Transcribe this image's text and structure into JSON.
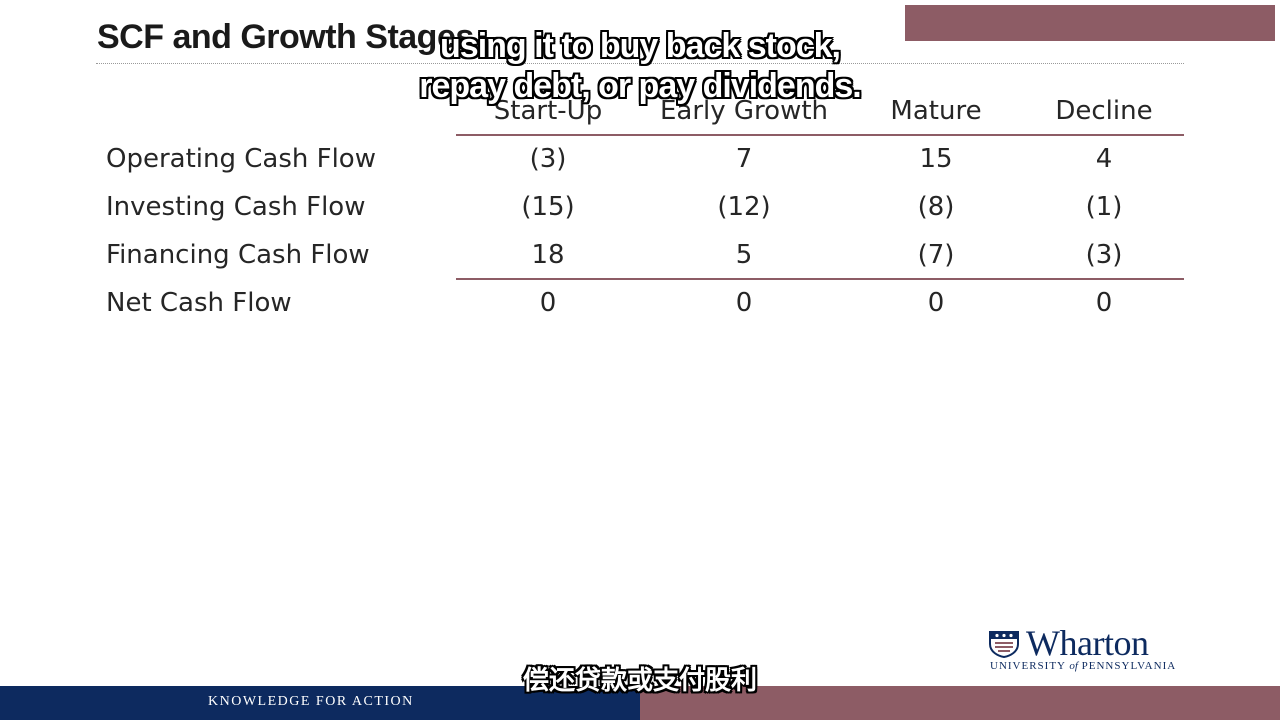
{
  "slide": {
    "title": "SCF and Growth Stages",
    "tagline": "KNOWLEDGE FOR ACTION"
  },
  "captions": {
    "english_line1": "using it to buy back stock,",
    "english_line2": "repay debt, or pay dividends.",
    "chinese": "偿还贷款或支付股利"
  },
  "table": {
    "columns": [
      "Start-Up",
      "Early Growth",
      "Mature",
      "Decline"
    ],
    "rows": [
      {
        "label": "Operating Cash Flow",
        "values": [
          "(3)",
          "7",
          "15",
          "4"
        ]
      },
      {
        "label": "Investing Cash Flow",
        "values": [
          "(15)",
          "(12)",
          "(8)",
          "(1)"
        ]
      },
      {
        "label": "Financing Cash Flow",
        "values": [
          "18",
          "5",
          "(7)",
          "(3)"
        ]
      },
      {
        "label": "Net Cash Flow",
        "values": [
          "0",
          "0",
          "0",
          "0"
        ]
      }
    ]
  },
  "logo": {
    "name": "Wharton",
    "subtitle_a": "UNIVERSITY",
    "subtitle_of": "of",
    "subtitle_b": "PENNSYLVANIA"
  },
  "colors": {
    "maroon": "#8d5c65",
    "navy": "#0d2a5f"
  }
}
